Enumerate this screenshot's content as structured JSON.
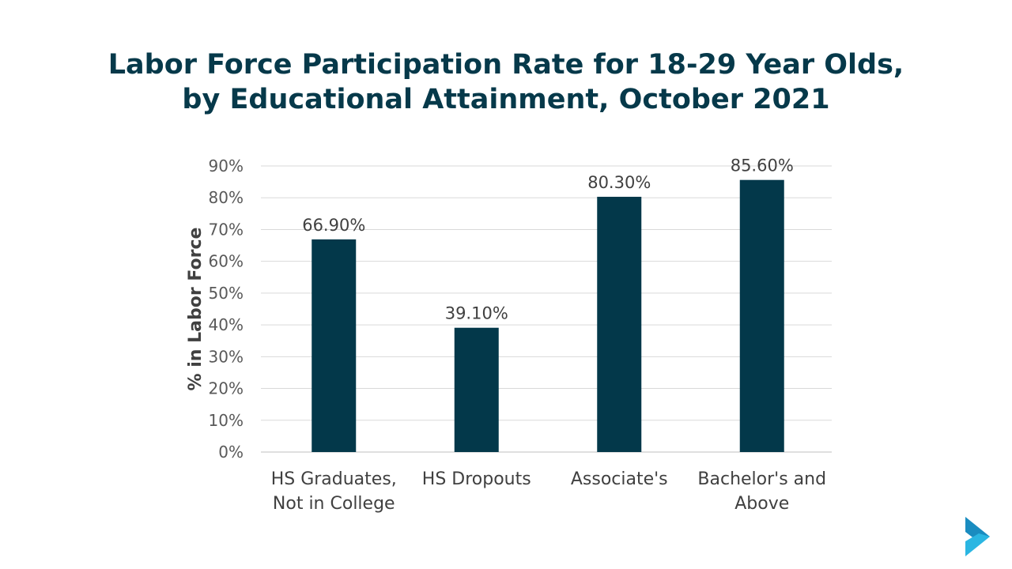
{
  "chart_data": {
    "type": "bar",
    "title_lines": [
      "Labor Force Participation Rate for 18-29 Year Olds,",
      "by Educational Attainment, October 2021"
    ],
    "categories": [
      [
        "HS Graduates,",
        "Not in College"
      ],
      [
        "HS Dropouts"
      ],
      [
        "Associate's"
      ],
      [
        "Bachelor's and",
        "Above"
      ]
    ],
    "values": [
      66.9,
      39.1,
      80.3,
      85.6
    ],
    "data_labels": [
      "66.90%",
      "39.10%",
      "80.30%",
      "85.60%"
    ],
    "xlabel": "",
    "ylabel": "% in Labor Force",
    "ylim": [
      0,
      90
    ],
    "yticks": [
      "0%",
      "10%",
      "20%",
      "30%",
      "40%",
      "50%",
      "60%",
      "70%",
      "80%",
      "90%"
    ],
    "grid": true,
    "legend": "none",
    "bar_color": "#03384a"
  },
  "logo": {
    "colors": [
      "#1a8cc0",
      "#2bb6e2"
    ]
  }
}
